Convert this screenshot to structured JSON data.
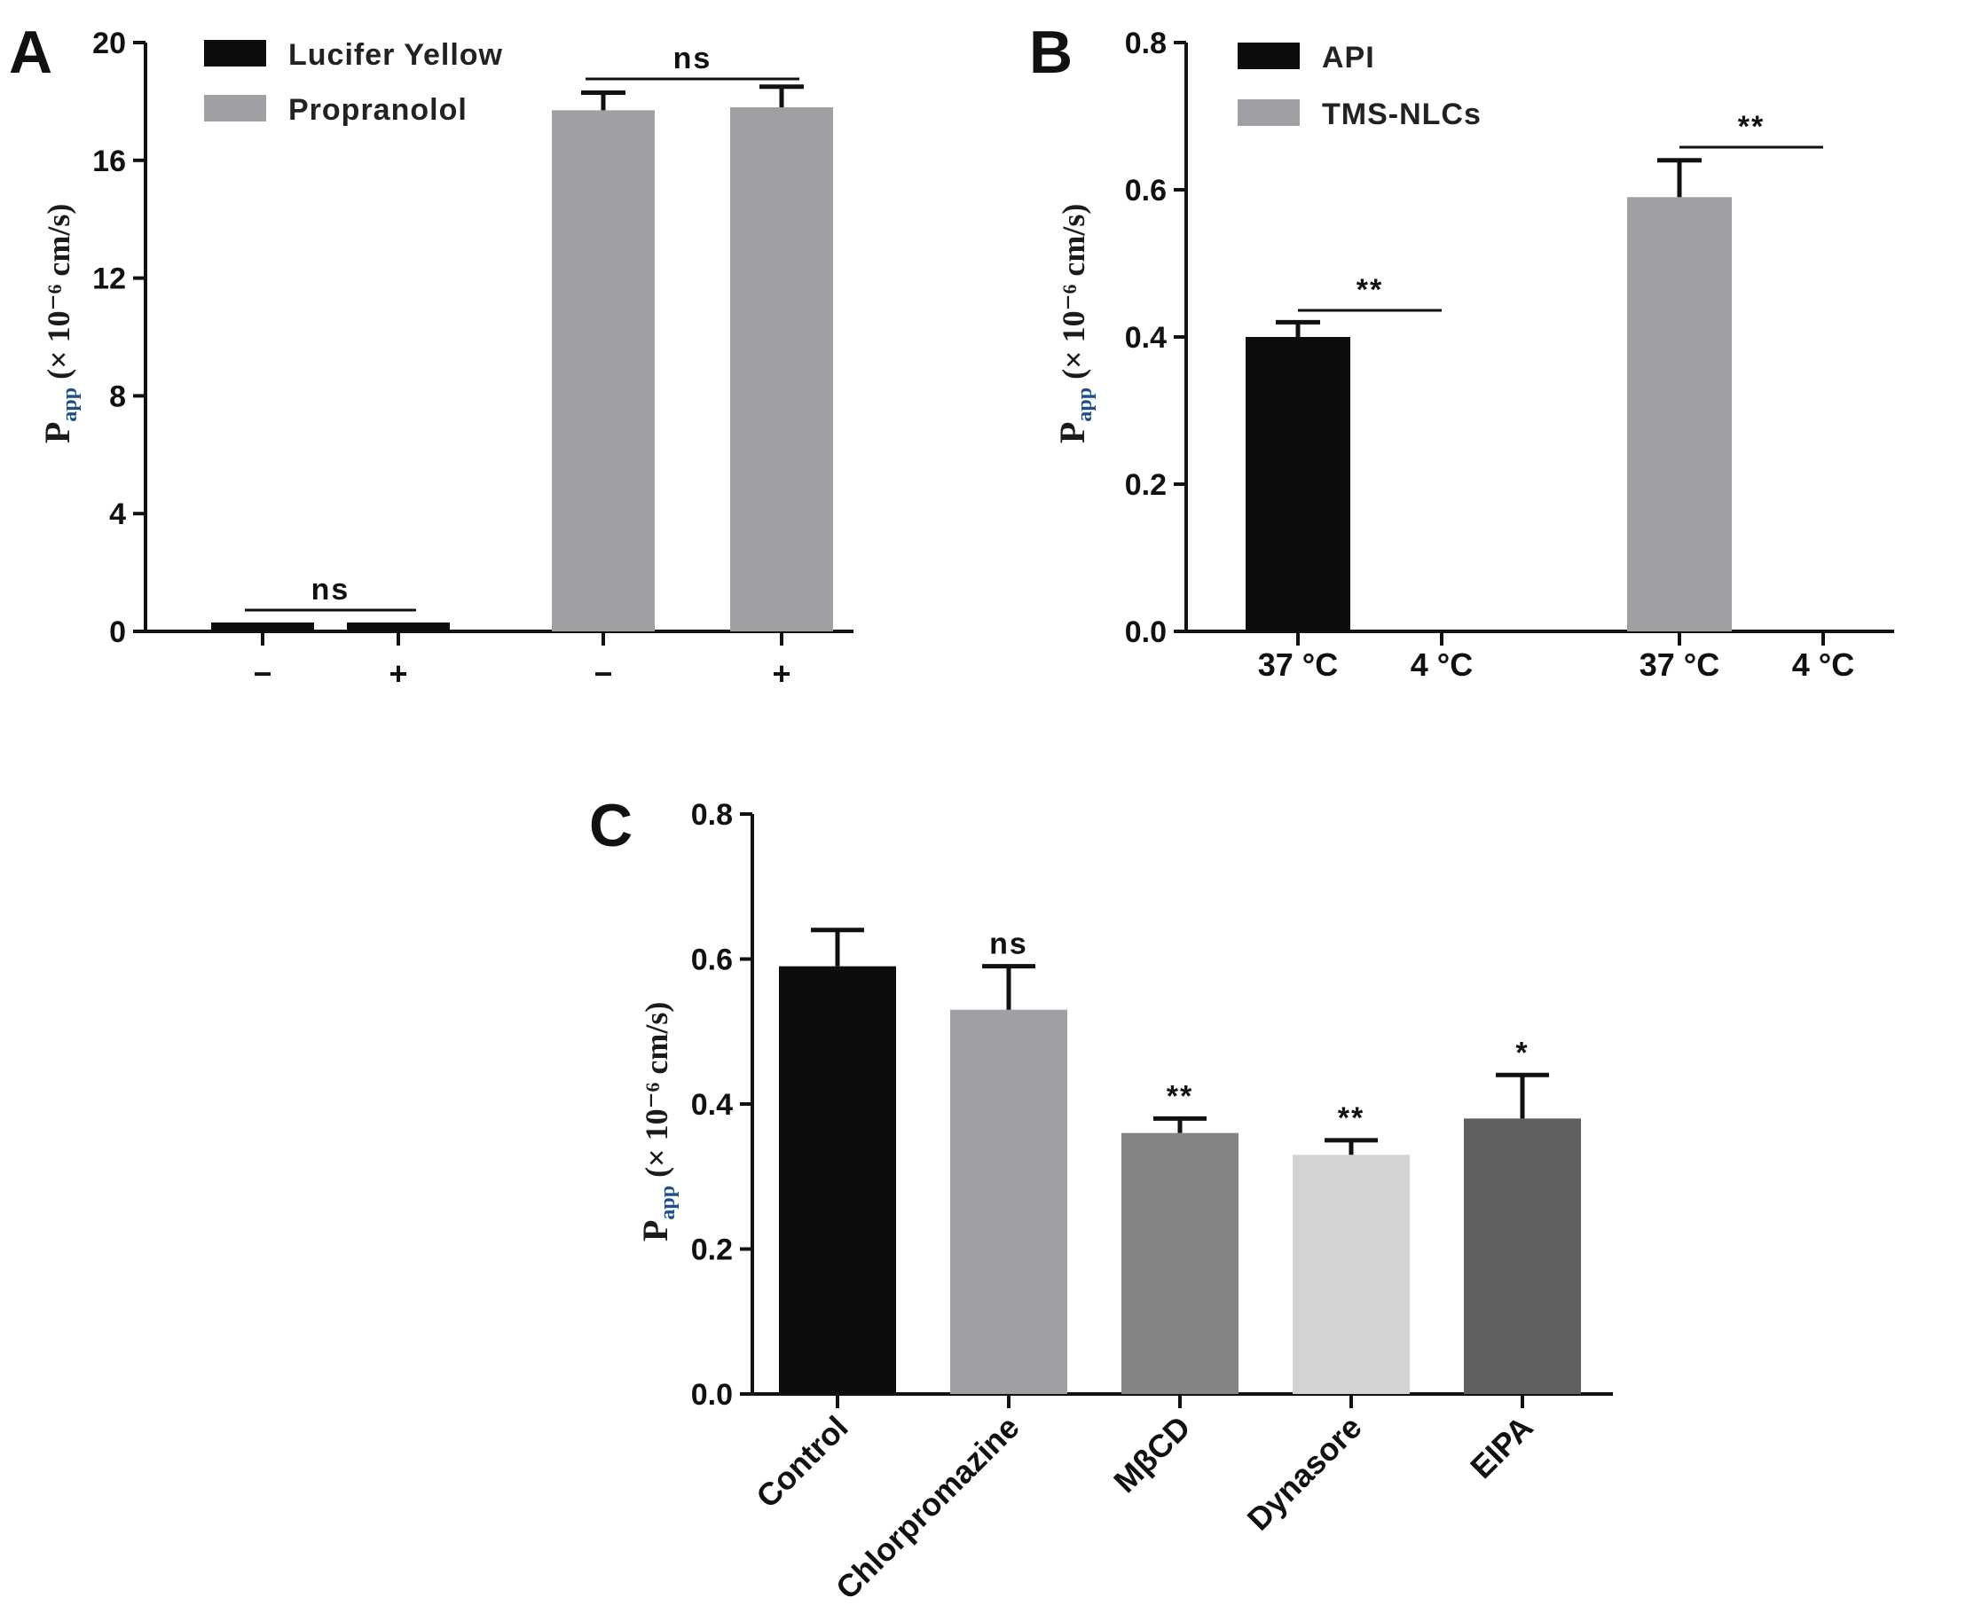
{
  "chart_data": [
    {
      "panel": "A",
      "type": "bar",
      "ylabel": {
        "main": "P",
        "sub": "app",
        "rest": " (× 10⁻⁶ cm/s)"
      },
      "ylim": [
        0,
        20
      ],
      "yticks": [
        0,
        4,
        8,
        12,
        16,
        20
      ],
      "legend": [
        {
          "name": "Lucifer Yellow",
          "color": "#0d0d0d"
        },
        {
          "name": "Propranolol",
          "color": "#a09fa4"
        }
      ],
      "legend_position": "top-left",
      "bars": [
        {
          "series": "Lucifer Yellow",
          "label": "−",
          "value": 0.15,
          "error": 0.1
        },
        {
          "series": "Lucifer Yellow",
          "label": "+",
          "value": 0.2,
          "error": 0.1
        },
        {
          "series": "Propranolol",
          "label": "−",
          "value": 17.7,
          "error": 0.6
        },
        {
          "series": "Propranolol",
          "label": "+",
          "value": 17.8,
          "error": 0.7
        }
      ],
      "significance": [
        {
          "from": 0,
          "to": 1,
          "text": "ns"
        },
        {
          "from": 2,
          "to": 3,
          "text": "ns"
        }
      ]
    },
    {
      "panel": "B",
      "type": "bar",
      "ylabel": {
        "main": "P",
        "sub": "app",
        "rest": " (× 10⁻⁶ cm/s)"
      },
      "ylim": [
        0,
        0.8
      ],
      "yticks": [
        "0.0",
        "0.2",
        "0.4",
        "0.6",
        "0.8"
      ],
      "legend": [
        {
          "name": "API",
          "color": "#0d0d0d"
        },
        {
          "name": "TMS-NLCs",
          "color": "#a09fa4"
        }
      ],
      "legend_position": "top-left",
      "bars": [
        {
          "series": "API",
          "label": "37 °C",
          "value": 0.4,
          "error": 0.02
        },
        {
          "series": "API",
          "label": "4 °C",
          "value": 0.0,
          "error": 0.0
        },
        {
          "series": "TMS-NLCs",
          "label": "37 °C",
          "value": 0.59,
          "error": 0.05
        },
        {
          "series": "TMS-NLCs",
          "label": "4 °C",
          "value": 0.0,
          "error": 0.0
        }
      ],
      "significance": [
        {
          "from": 0,
          "to": 1,
          "text": "**"
        },
        {
          "from": 2,
          "to": 3,
          "text": "**"
        }
      ]
    },
    {
      "panel": "C",
      "type": "bar",
      "ylabel": {
        "main": "P",
        "sub": "app",
        "rest": " (× 10⁻⁶ cm/s)"
      },
      "ylim": [
        0,
        0.8
      ],
      "yticks": [
        "0.0",
        "0.2",
        "0.4",
        "0.6",
        "0.8"
      ],
      "categories": [
        "Control",
        "Chlorpromazine",
        "MβCD",
        "Dynasore",
        "EIPA"
      ],
      "values": [
        0.59,
        0.53,
        0.36,
        0.33,
        0.38
      ],
      "errors": [
        0.05,
        0.06,
        0.02,
        0.02,
        0.06
      ],
      "colors": [
        "#0d0d0d",
        "#a09fa4",
        "#838383",
        "#d3d3d3",
        "#606060"
      ],
      "stars": [
        "",
        "ns",
        "**",
        "**",
        "*"
      ]
    }
  ]
}
